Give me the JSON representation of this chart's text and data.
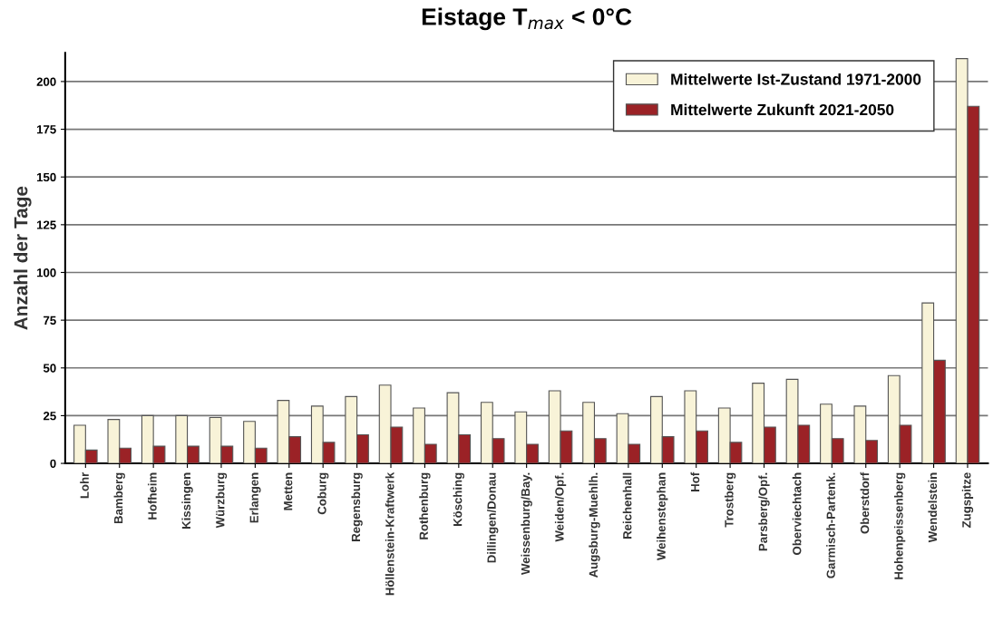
{
  "chart_data": {
    "type": "bar",
    "title": "Eistage T$_{max}$ < 0°C",
    "ylabel": "Anzahl der Tage",
    "categories": [
      "Lohr",
      "Bamberg",
      "Hofheim",
      "Kissingen",
      "Würzburg",
      "Erlangen",
      "Metten",
      "Coburg",
      "Regensburg",
      "Höllenstein-Kraftwerk",
      "Rothenburg",
      "Kösching",
      "Dillingen/Donau",
      "Weissenburg/Bay.",
      "Weiden/Opf.",
      "Augsburg-Muehlh.",
      "Reichenhall",
      "Weihenstephan",
      "Hof",
      "Trostberg",
      "Parsberg/Opf.",
      "Oberviechtach",
      "Garmisch-Partenk.",
      "Oberstdorf",
      "Hohenpeissenberg",
      "Wendelstein",
      "Zugspitze"
    ],
    "series": [
      {
        "name": "Mittelwerte Ist-Zustand 1971-2000",
        "color": "#f8f3d8",
        "values": [
          20,
          23,
          25,
          25,
          24,
          22,
          33,
          30,
          35,
          41,
          29,
          37,
          32,
          27,
          38,
          32,
          26,
          35,
          38,
          29,
          42,
          44,
          31,
          30,
          46,
          84,
          212
        ]
      },
      {
        "name": "Mittelwerte Zukunft 2021-2050",
        "color": "#9b2226",
        "values": [
          7,
          8,
          9,
          9,
          9,
          8,
          14,
          11,
          15,
          19,
          10,
          15,
          13,
          10,
          17,
          13,
          10,
          14,
          17,
          11,
          19,
          20,
          13,
          12,
          20,
          54,
          187
        ]
      }
    ],
    "ylim": [
      0,
      215
    ],
    "yticks": [
      0,
      25,
      50,
      75,
      100,
      125,
      150,
      175,
      200
    ],
    "grid": "y",
    "legend": "top right"
  }
}
